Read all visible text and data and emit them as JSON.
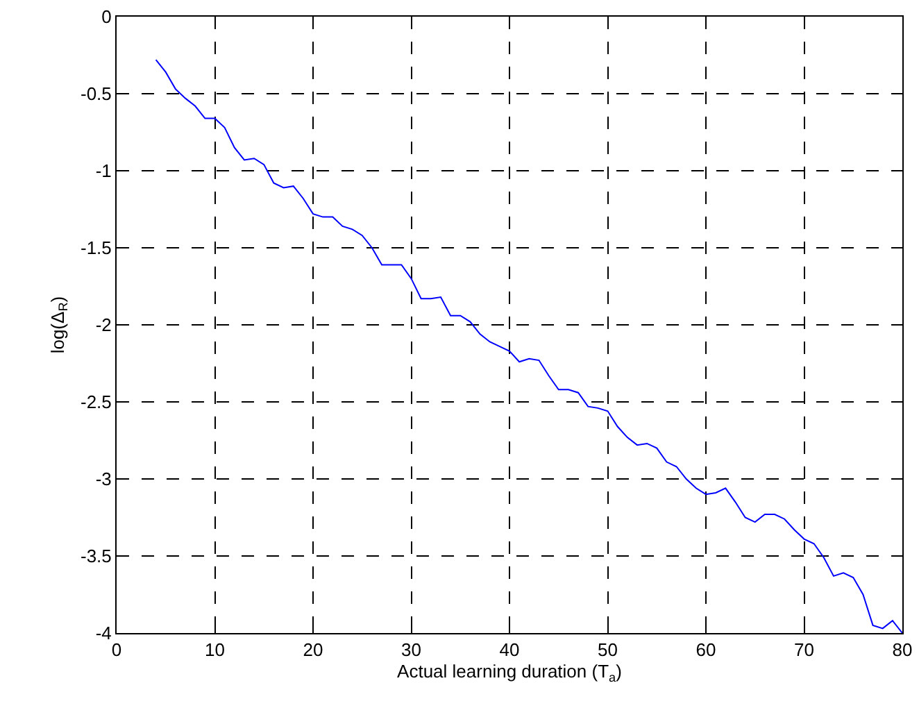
{
  "chart_data": {
    "type": "line",
    "xlabel": "Actual learning duration (T$_{a}$)",
    "ylabel": "log(Δ$_{R}$)",
    "x": [
      4,
      5,
      6,
      7,
      8,
      9,
      10,
      11,
      12,
      13,
      14,
      15,
      16,
      17,
      18,
      19,
      20,
      21,
      22,
      23,
      24,
      25,
      26,
      27,
      28,
      29,
      30,
      31,
      32,
      33,
      34,
      35,
      36,
      37,
      38,
      39,
      40,
      41,
      42,
      43,
      44,
      45,
      46,
      47,
      48,
      49,
      50,
      51,
      52,
      53,
      54,
      55,
      56,
      57,
      58,
      59,
      60,
      61,
      62,
      63,
      64,
      65,
      66,
      67,
      68,
      69,
      70,
      71,
      72,
      73,
      74,
      75,
      76,
      77,
      78,
      79,
      80
    ],
    "series": [
      {
        "color": "#0000ff",
        "values": [
          -0.28,
          -0.36,
          -0.47,
          -0.53,
          -0.58,
          -0.66,
          -0.66,
          -0.72,
          -0.85,
          -0.93,
          -0.92,
          -0.96,
          -1.08,
          -1.11,
          -1.1,
          -1.18,
          -1.28,
          -1.3,
          -1.3,
          -1.36,
          -1.38,
          -1.42,
          -1.5,
          -1.61,
          -1.61,
          -1.61,
          -1.7,
          -1.83,
          -1.83,
          -1.82,
          -1.94,
          -1.94,
          -1.98,
          -2.06,
          -2.11,
          -2.14,
          -2.17,
          -2.24,
          -2.22,
          -2.23,
          -2.33,
          -2.42,
          -2.42,
          -2.44,
          -2.53,
          -2.54,
          -2.56,
          -2.66,
          -2.73,
          -2.78,
          -2.77,
          -2.8,
          -2.89,
          -2.92,
          -3.0,
          -3.06,
          -3.1,
          -3.09,
          -3.06,
          -3.15,
          -3.25,
          -3.28,
          -3.23,
          -3.23,
          -3.26,
          -3.33,
          -3.39,
          -3.42,
          -3.51,
          -3.63,
          -3.61,
          -3.64,
          -3.75,
          -3.95,
          -3.97,
          -3.92,
          -4.0
        ]
      }
    ],
    "xlim": [
      0,
      80
    ],
    "xticks": [
      0,
      10,
      20,
      30,
      40,
      50,
      60,
      70,
      80
    ],
    "ylim": [
      -4,
      0
    ],
    "yticks": [
      -4,
      -3.5,
      -3,
      -2.5,
      -2,
      -1.5,
      -1,
      -0.5,
      0
    ],
    "grid": true,
    "marker": "none",
    "line_style": "solid"
  }
}
